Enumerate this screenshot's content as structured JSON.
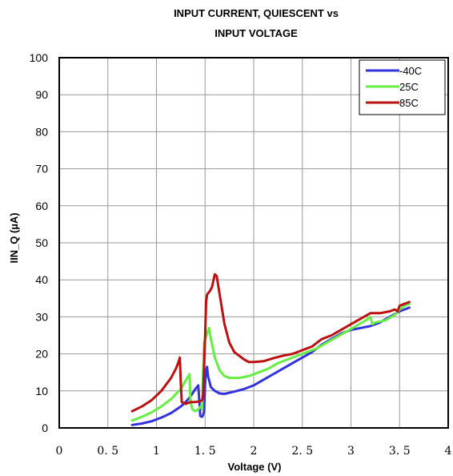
{
  "chart_data": {
    "type": "line",
    "title_lines": [
      "INPUT CURRENT, QUIESCENT vs",
      "INPUT  VOLTAGE"
    ],
    "xlabel": "Voltage  (V)",
    "ylabel": "IIN_Q  (µA)",
    "xlim": [
      0,
      4
    ],
    "ylim": [
      0,
      100
    ],
    "x_ticks": [
      0,
      0.5,
      1,
      1.5,
      2,
      2.5,
      3,
      3.5,
      4
    ],
    "x_tick_labels": [
      "0",
      "0. 5",
      "1",
      "1. 5",
      "2",
      "2. 5",
      "3",
      "3. 5",
      "4"
    ],
    "y_ticks": [
      0,
      10,
      20,
      30,
      40,
      50,
      60,
      70,
      80,
      90,
      100
    ],
    "y_tick_labels": [
      "0",
      "10",
      "20",
      "30",
      "40",
      "50",
      "60",
      "70",
      "80",
      "90",
      "100"
    ],
    "grid": true,
    "legend_position": "top-right",
    "series": [
      {
        "name": "-40C",
        "color": "#3333dd",
        "points": [
          [
            0.75,
            0.8
          ],
          [
            0.85,
            1.2
          ],
          [
            0.95,
            1.8
          ],
          [
            1.05,
            2.8
          ],
          [
            1.15,
            4.0
          ],
          [
            1.25,
            5.8
          ],
          [
            1.3,
            7.0
          ],
          [
            1.35,
            8.5
          ],
          [
            1.4,
            10.5
          ],
          [
            1.43,
            11.5
          ],
          [
            1.445,
            5.5
          ],
          [
            1.45,
            3.2
          ],
          [
            1.47,
            3.0
          ],
          [
            1.48,
            3.5
          ],
          [
            1.49,
            4.5
          ],
          [
            1.5,
            12.0
          ],
          [
            1.51,
            15.5
          ],
          [
            1.52,
            16.5
          ],
          [
            1.53,
            14.0
          ],
          [
            1.56,
            11.0
          ],
          [
            1.6,
            10.0
          ],
          [
            1.65,
            9.3
          ],
          [
            1.7,
            9.2
          ],
          [
            1.8,
            9.8
          ],
          [
            1.9,
            10.5
          ],
          [
            2.0,
            11.5
          ],
          [
            2.1,
            13.0
          ],
          [
            2.2,
            14.5
          ],
          [
            2.3,
            16.0
          ],
          [
            2.4,
            17.5
          ],
          [
            2.5,
            19.0
          ],
          [
            2.6,
            20.5
          ],
          [
            2.7,
            22.5
          ],
          [
            2.8,
            24.0
          ],
          [
            2.9,
            25.5
          ],
          [
            3.0,
            26.5
          ],
          [
            3.1,
            27.0
          ],
          [
            3.2,
            27.5
          ],
          [
            3.3,
            28.5
          ],
          [
            3.4,
            30.0
          ],
          [
            3.5,
            31.5
          ],
          [
            3.6,
            32.5
          ]
        ]
      },
      {
        "name": "25C",
        "color": "#66ee44",
        "points": [
          [
            0.75,
            2.0
          ],
          [
            0.85,
            3.0
          ],
          [
            0.95,
            4.2
          ],
          [
            1.05,
            5.8
          ],
          [
            1.15,
            7.8
          ],
          [
            1.25,
            10.5
          ],
          [
            1.3,
            12.8
          ],
          [
            1.34,
            14.5
          ],
          [
            1.35,
            7.0
          ],
          [
            1.37,
            5.0
          ],
          [
            1.4,
            4.5
          ],
          [
            1.43,
            5.0
          ],
          [
            1.46,
            6.0
          ],
          [
            1.47,
            5.0
          ],
          [
            1.48,
            15.0
          ],
          [
            1.49,
            23.0
          ],
          [
            1.5,
            24.0
          ],
          [
            1.52,
            25.5
          ],
          [
            1.54,
            27.0
          ],
          [
            1.56,
            24.0
          ],
          [
            1.6,
            19.0
          ],
          [
            1.65,
            15.5
          ],
          [
            1.7,
            14.0
          ],
          [
            1.75,
            13.5
          ],
          [
            1.85,
            13.5
          ],
          [
            1.95,
            14.0
          ],
          [
            2.05,
            15.0
          ],
          [
            2.15,
            16.0
          ],
          [
            2.25,
            17.5
          ],
          [
            2.35,
            18.5
          ],
          [
            2.45,
            19.5
          ],
          [
            2.55,
            20.5
          ],
          [
            2.65,
            21.5
          ],
          [
            2.75,
            23.0
          ],
          [
            2.85,
            24.5
          ],
          [
            2.95,
            26.0
          ],
          [
            3.05,
            27.5
          ],
          [
            3.15,
            29.0
          ],
          [
            3.2,
            30.0
          ],
          [
            3.22,
            28.0
          ],
          [
            3.25,
            28.5
          ],
          [
            3.35,
            29.0
          ],
          [
            3.45,
            30.5
          ],
          [
            3.5,
            32.0
          ],
          [
            3.55,
            33.0
          ],
          [
            3.6,
            33.5
          ]
        ]
      },
      {
        "name": "85C",
        "color": "#bb1111",
        "points": [
          [
            0.75,
            4.5
          ],
          [
            0.85,
            5.8
          ],
          [
            0.95,
            7.5
          ],
          [
            1.05,
            10.0
          ],
          [
            1.15,
            13.5
          ],
          [
            1.2,
            16.0
          ],
          [
            1.23,
            18.0
          ],
          [
            1.24,
            19.0
          ],
          [
            1.25,
            12.0
          ],
          [
            1.26,
            7.0
          ],
          [
            1.3,
            6.5
          ],
          [
            1.35,
            7.0
          ],
          [
            1.4,
            7.0
          ],
          [
            1.45,
            7.2
          ],
          [
            1.47,
            7.5
          ],
          [
            1.48,
            9.0
          ],
          [
            1.5,
            25.0
          ],
          [
            1.51,
            34.0
          ],
          [
            1.52,
            36.0
          ],
          [
            1.55,
            37.0
          ],
          [
            1.57,
            38.0
          ],
          [
            1.6,
            41.5
          ],
          [
            1.62,
            41.0
          ],
          [
            1.65,
            36.0
          ],
          [
            1.7,
            28.0
          ],
          [
            1.75,
            23.0
          ],
          [
            1.8,
            20.5
          ],
          [
            1.85,
            19.5
          ],
          [
            1.9,
            18.5
          ],
          [
            1.95,
            17.8
          ],
          [
            2.0,
            17.8
          ],
          [
            2.1,
            18.0
          ],
          [
            2.2,
            18.8
          ],
          [
            2.3,
            19.5
          ],
          [
            2.4,
            20.0
          ],
          [
            2.5,
            21.0
          ],
          [
            2.6,
            22.0
          ],
          [
            2.65,
            23.0
          ],
          [
            2.7,
            24.0
          ],
          [
            2.8,
            25.0
          ],
          [
            2.9,
            26.5
          ],
          [
            3.0,
            28.0
          ],
          [
            3.1,
            29.5
          ],
          [
            3.2,
            31.0
          ],
          [
            3.3,
            31.0
          ],
          [
            3.4,
            31.5
          ],
          [
            3.45,
            32.0
          ],
          [
            3.48,
            31.5
          ],
          [
            3.5,
            33.0
          ],
          [
            3.55,
            33.5
          ],
          [
            3.6,
            34.0
          ]
        ]
      }
    ]
  }
}
